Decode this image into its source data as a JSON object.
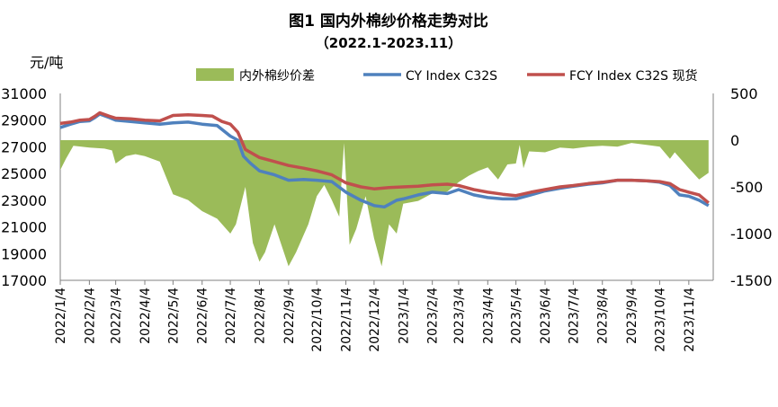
{
  "chart_data": {
    "type": "line",
    "title": "图1  国内外棉纱价格走势对比",
    "subtitle": "（2022.1-2023.11）",
    "ylabel_left": "元/吨",
    "ylim_left": [
      17000,
      31000
    ],
    "ylim_right": [
      -1500,
      500
    ],
    "yticks_left": [
      "31000",
      "29000",
      "27000",
      "25000",
      "23000",
      "21000",
      "19000",
      "17000"
    ],
    "yticks_right": [
      "500",
      "0",
      "-500",
      "-1000",
      "-1500"
    ],
    "x_ticks": [
      "2022/1/4",
      "2022/2/4",
      "2022/3/4",
      "2022/4/4",
      "2022/5/4",
      "2022/6/4",
      "2022/7/4",
      "2022/8/4",
      "2022/9/4",
      "2022/10/4",
      "2022/11/4",
      "2022/12/4",
      "2023/1/4",
      "2023/2/4",
      "2023/3/4",
      "2023/4/4",
      "2023/5/4",
      "2023/6/4",
      "2023/7/4",
      "2023/8/4",
      "2023/9/4",
      "2023/10/4",
      "2023/11/4"
    ],
    "legend_position": "top",
    "series": [
      {
        "name": "内外棉纱价差",
        "axis": "right",
        "kind": "area",
        "color": "#9bbb59",
        "points": [
          [
            "2022/1/4",
            -320
          ],
          [
            "2022/1/10",
            -200
          ],
          [
            "2022/1/18",
            -60
          ],
          [
            "2022/2/4",
            -80
          ],
          [
            "2022/2/20",
            -90
          ],
          [
            "2022/2/28",
            -110
          ],
          [
            "2022/3/4",
            -250
          ],
          [
            "2022/3/15",
            -170
          ],
          [
            "2022/3/25",
            -150
          ],
          [
            "2022/4/4",
            -170
          ],
          [
            "2022/4/20",
            -230
          ],
          [
            "2022/5/4",
            -580
          ],
          [
            "2022/5/20",
            -640
          ],
          [
            "2022/6/4",
            -760
          ],
          [
            "2022/6/20",
            -840
          ],
          [
            "2022/7/4",
            -1000
          ],
          [
            "2022/7/10",
            -900
          ],
          [
            "2022/7/20",
            -500
          ],
          [
            "2022/7/28",
            -1100
          ],
          [
            "2022/8/4",
            -1300
          ],
          [
            "2022/8/10",
            -1200
          ],
          [
            "2022/8/20",
            -900
          ],
          [
            "2022/9/4",
            -1350
          ],
          [
            "2022/9/12",
            -1200
          ],
          [
            "2022/9/25",
            -900
          ],
          [
            "2022/10/4",
            -600
          ],
          [
            "2022/10/12",
            -480
          ],
          [
            "2022/10/20",
            -640
          ],
          [
            "2022/10/28",
            -820
          ],
          [
            "2022/11/2",
            -30
          ],
          [
            "2022/11/8",
            -1120
          ],
          [
            "2022/11/15",
            -950
          ],
          [
            "2022/11/25",
            -600
          ],
          [
            "2022/12/4",
            -1050
          ],
          [
            "2022/12/12",
            -1350
          ],
          [
            "2022/12/20",
            -900
          ],
          [
            "2022/12/28",
            -1000
          ],
          [
            "2023/1/4",
            -680
          ],
          [
            "2023/1/20",
            -650
          ],
          [
            "2023/2/4",
            -570
          ],
          [
            "2023/2/20",
            -550
          ],
          [
            "2023/3/4",
            -450
          ],
          [
            "2023/3/15",
            -380
          ],
          [
            "2023/3/25",
            -330
          ],
          [
            "2023/4/4",
            -290
          ],
          [
            "2023/4/15",
            -420
          ],
          [
            "2023/4/25",
            -260
          ],
          [
            "2023/5/4",
            -250
          ],
          [
            "2023/5/8",
            -50
          ],
          [
            "2023/5/12",
            -300
          ],
          [
            "2023/5/18",
            -120
          ],
          [
            "2023/6/4",
            -130
          ],
          [
            "2023/6/20",
            -80
          ],
          [
            "2023/7/4",
            -90
          ],
          [
            "2023/7/20",
            -70
          ],
          [
            "2023/8/4",
            -60
          ],
          [
            "2023/8/20",
            -70
          ],
          [
            "2023/9/4",
            -30
          ],
          [
            "2023/9/20",
            -50
          ],
          [
            "2023/10/4",
            -70
          ],
          [
            "2023/10/15",
            -200
          ],
          [
            "2023/10/20",
            -130
          ],
          [
            "2023/11/4",
            -300
          ],
          [
            "2023/11/15",
            -420
          ],
          [
            "2023/11/25",
            -350
          ]
        ]
      },
      {
        "name": "CY Index C32S",
        "axis": "left",
        "kind": "line",
        "color": "#4f81bd",
        "points": [
          [
            "2022/1/4",
            28450
          ],
          [
            "2022/1/15",
            28700
          ],
          [
            "2022/1/25",
            28900
          ],
          [
            "2022/2/4",
            28950
          ],
          [
            "2022/2/10",
            29200
          ],
          [
            "2022/2/15",
            29450
          ],
          [
            "2022/2/25",
            29200
          ],
          [
            "2022/3/4",
            29000
          ],
          [
            "2022/3/20",
            28900
          ],
          [
            "2022/4/4",
            28800
          ],
          [
            "2022/4/20",
            28700
          ],
          [
            "2022/5/4",
            28800
          ],
          [
            "2022/5/20",
            28850
          ],
          [
            "2022/6/4",
            28700
          ],
          [
            "2022/6/20",
            28600
          ],
          [
            "2022/7/4",
            27800
          ],
          [
            "2022/7/12",
            27500
          ],
          [
            "2022/7/18",
            26300
          ],
          [
            "2022/7/25",
            25800
          ],
          [
            "2022/8/4",
            25200
          ],
          [
            "2022/8/20",
            24900
          ],
          [
            "2022/9/4",
            24500
          ],
          [
            "2022/9/20",
            24550
          ],
          [
            "2022/10/4",
            24500
          ],
          [
            "2022/10/20",
            24400
          ],
          [
            "2022/11/4",
            23600
          ],
          [
            "2022/11/20",
            23000
          ],
          [
            "2022/12/4",
            22600
          ],
          [
            "2022/12/15",
            22500
          ],
          [
            "2022/12/28",
            23000
          ],
          [
            "2023/1/4",
            23100
          ],
          [
            "2023/1/20",
            23400
          ],
          [
            "2023/2/4",
            23600
          ],
          [
            "2023/2/20",
            23500
          ],
          [
            "2023/3/4",
            23800
          ],
          [
            "2023/3/20",
            23400
          ],
          [
            "2023/4/4",
            23200
          ],
          [
            "2023/4/20",
            23100
          ],
          [
            "2023/5/4",
            23100
          ],
          [
            "2023/5/20",
            23400
          ],
          [
            "2023/6/4",
            23700
          ],
          [
            "2023/6/20",
            23900
          ],
          [
            "2023/7/4",
            24050
          ],
          [
            "2023/7/20",
            24200
          ],
          [
            "2023/8/4",
            24300
          ],
          [
            "2023/8/20",
            24500
          ],
          [
            "2023/9/4",
            24500
          ],
          [
            "2023/9/20",
            24450
          ],
          [
            "2023/10/4",
            24350
          ],
          [
            "2023/10/15",
            24100
          ],
          [
            "2023/10/25",
            23400
          ],
          [
            "2023/11/4",
            23300
          ],
          [
            "2023/11/15",
            23000
          ],
          [
            "2023/11/25",
            22600
          ]
        ]
      },
      {
        "name": "FCY Index C32S 现货",
        "axis": "left",
        "kind": "line",
        "color": "#c0504d",
        "points": [
          [
            "2022/1/4",
            28750
          ],
          [
            "2022/1/15",
            28850
          ],
          [
            "2022/1/25",
            29000
          ],
          [
            "2022/2/4",
            29050
          ],
          [
            "2022/2/10",
            29300
          ],
          [
            "2022/2/15",
            29550
          ],
          [
            "2022/2/25",
            29300
          ],
          [
            "2022/3/4",
            29150
          ],
          [
            "2022/3/20",
            29100
          ],
          [
            "2022/4/4",
            29000
          ],
          [
            "2022/4/20",
            28950
          ],
          [
            "2022/5/4",
            29350
          ],
          [
            "2022/5/20",
            29400
          ],
          [
            "2022/6/4",
            29350
          ],
          [
            "2022/6/15",
            29300
          ],
          [
            "2022/6/25",
            28900
          ],
          [
            "2022/7/4",
            28700
          ],
          [
            "2022/7/12",
            28100
          ],
          [
            "2022/7/20",
            26800
          ],
          [
            "2022/8/4",
            26200
          ],
          [
            "2022/8/20",
            25900
          ],
          [
            "2022/9/4",
            25600
          ],
          [
            "2022/9/20",
            25400
          ],
          [
            "2022/10/4",
            25200
          ],
          [
            "2022/10/20",
            24900
          ],
          [
            "2022/11/4",
            24300
          ],
          [
            "2022/11/20",
            24000
          ],
          [
            "2022/12/4",
            23850
          ],
          [
            "2022/12/20",
            23950
          ],
          [
            "2023/1/4",
            24000
          ],
          [
            "2023/1/20",
            24050
          ],
          [
            "2023/2/4",
            24150
          ],
          [
            "2023/2/20",
            24200
          ],
          [
            "2023/3/4",
            24100
          ],
          [
            "2023/3/20",
            23800
          ],
          [
            "2023/4/4",
            23600
          ],
          [
            "2023/4/20",
            23450
          ],
          [
            "2023/5/4",
            23350
          ],
          [
            "2023/5/20",
            23600
          ],
          [
            "2023/6/4",
            23800
          ],
          [
            "2023/6/20",
            24000
          ],
          [
            "2023/7/4",
            24100
          ],
          [
            "2023/7/20",
            24250
          ],
          [
            "2023/8/4",
            24350
          ],
          [
            "2023/8/20",
            24500
          ],
          [
            "2023/9/4",
            24500
          ],
          [
            "2023/9/20",
            24450
          ],
          [
            "2023/10/4",
            24400
          ],
          [
            "2023/10/15",
            24250
          ],
          [
            "2023/10/25",
            23800
          ],
          [
            "2023/11/4",
            23600
          ],
          [
            "2023/11/15",
            23400
          ],
          [
            "2023/11/25",
            22800
          ]
        ]
      }
    ]
  }
}
